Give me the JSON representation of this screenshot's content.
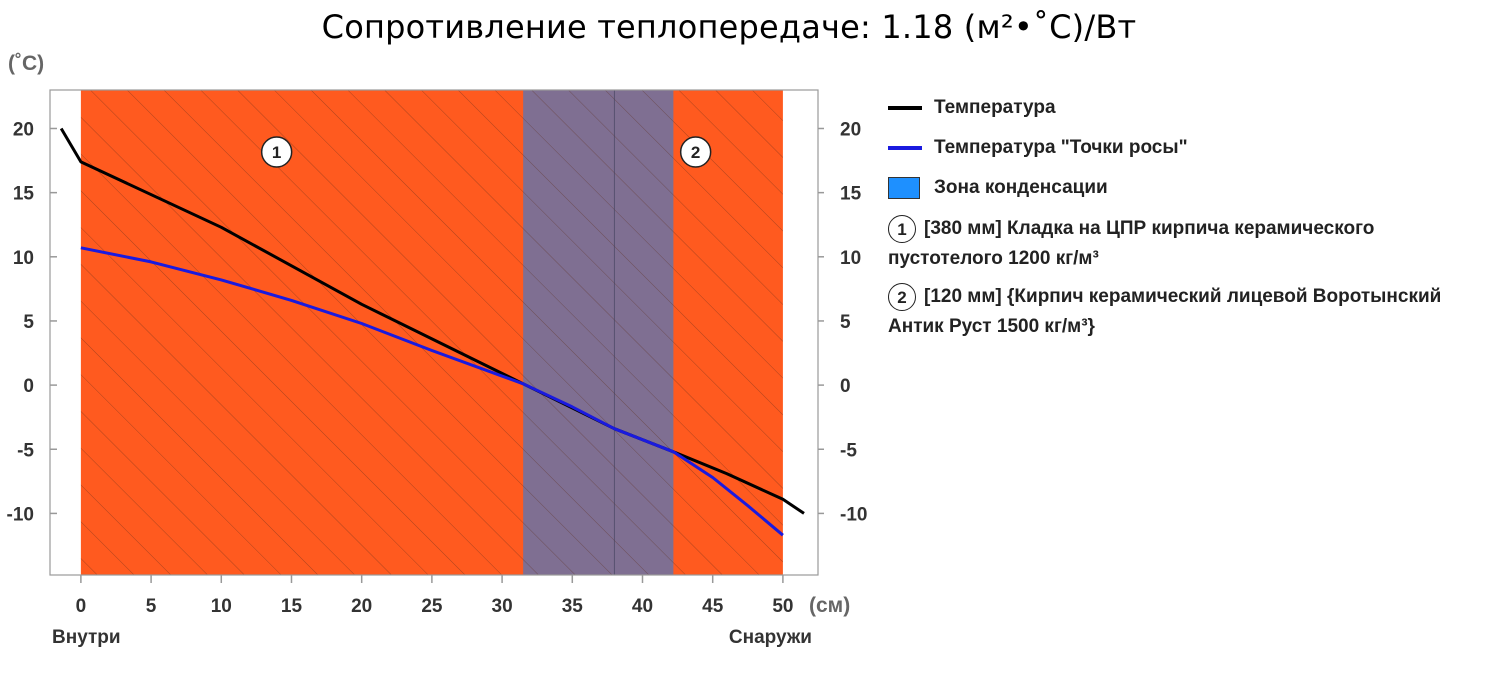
{
  "title": "Сопротивление теплопередаче: 1.18 (м²•˚С)/Вт",
  "legend": {
    "temperature": "Температура",
    "dew_point": "Температура \"Точки росы\"",
    "condensation": "Зона конденсации",
    "layers": [
      {
        "num": "1",
        "text": "[380 мм] Кладка на ЦПР кирпича керамического пустотелого 1200 кг/м³"
      },
      {
        "num": "2",
        "text": "[120 мм] {Кирпич керамический лицевой Воротынский Антик Руст 1500 кг/м³}"
      }
    ]
  },
  "colors": {
    "temperature": "#000000",
    "dew_point": "#1a1adf",
    "layer_fill": "#ff5a1f",
    "condensation_fill": "#7f6f92",
    "condensation_legend": "#1e90ff"
  },
  "chart_data": {
    "type": "line",
    "title": "Сопротивление теплопередаче: 1.18 (м²•˚С)/Вт",
    "ylabel": "(˚С)",
    "xlabel": "(см)",
    "x_tick_labels": [
      "0",
      "5",
      "10",
      "15",
      "20",
      "25",
      "30",
      "35",
      "40",
      "45",
      "50"
    ],
    "y_tick_labels": [
      "20",
      "15",
      "10",
      "5",
      "0",
      "-5",
      "-10"
    ],
    "y_ticks": [
      20,
      15,
      10,
      5,
      0,
      -5,
      -10
    ],
    "x_ticks": [
      0,
      5,
      10,
      15,
      20,
      25,
      30,
      35,
      40,
      45,
      50
    ],
    "xlim": [
      -2.2,
      52.5
    ],
    "ylim": [
      -14.8,
      23
    ],
    "inside_label": "Внутри",
    "outside_label": "Снаружи",
    "layers": [
      {
        "label": "1",
        "start": 0,
        "end": 38
      },
      {
        "label": "2",
        "start": 38,
        "end": 50
      }
    ],
    "condensation_zone": [
      31.5,
      42.2
    ],
    "series": [
      {
        "name": "Температура",
        "x": [
          -1.4,
          0,
          10,
          20,
          31.5,
          38,
          42.2,
          46,
          50,
          51.5
        ],
        "y": [
          20,
          17.4,
          12.3,
          6.3,
          0.1,
          -3.4,
          -5.2,
          -6.9,
          -8.9,
          -10
        ]
      },
      {
        "name": "Температура \"Точки росы\"",
        "x": [
          0,
          5,
          10,
          15,
          20,
          25,
          31.5,
          35,
          38,
          42.2,
          45,
          47.5,
          50
        ],
        "y": [
          10.7,
          9.6,
          8.2,
          6.6,
          4.8,
          2.7,
          0.1,
          -1.7,
          -3.4,
          -5.2,
          -7.2,
          -9.4,
          -11.7
        ]
      }
    ]
  }
}
